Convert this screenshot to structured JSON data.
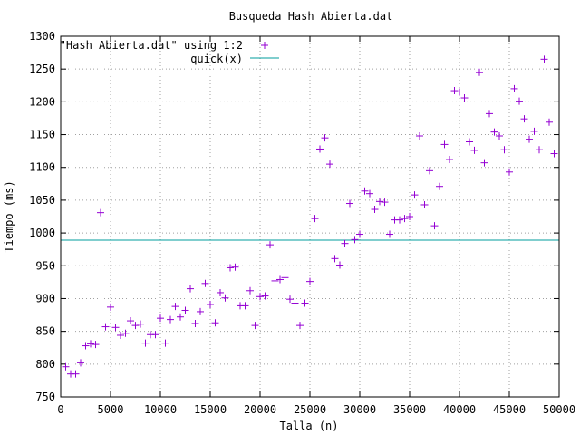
{
  "chart_data": {
    "type": "scatter",
    "title": "Busqueda Hash Abierta.dat",
    "xlabel": "Talla (n)",
    "ylabel": "Tiempo (ms)",
    "xlim": [
      0,
      50000
    ],
    "ylim": [
      750,
      1300
    ],
    "x_ticks": [
      0,
      5000,
      10000,
      15000,
      20000,
      25000,
      30000,
      35000,
      40000,
      45000,
      50000
    ],
    "y_ticks": [
      750,
      800,
      850,
      900,
      950,
      1000,
      1050,
      1100,
      1150,
      1200,
      1250,
      1300
    ],
    "grid": true,
    "legend_position": "top-left",
    "series": [
      {
        "name": "\"Hash Abierta.dat\" using 1:2",
        "type": "scatter",
        "marker": "+",
        "color": "#9400d3",
        "x": [
          500,
          1000,
          1500,
          2000,
          2500,
          3000,
          3500,
          4000,
          4500,
          5000,
          5500,
          6000,
          6500,
          7000,
          7500,
          8000,
          8500,
          9000,
          9500,
          10000,
          10500,
          11000,
          11500,
          12000,
          12500,
          13000,
          13500,
          14000,
          14500,
          15000,
          15500,
          16000,
          16500,
          17000,
          17500,
          18000,
          18500,
          19000,
          19500,
          20000,
          20500,
          21000,
          21500,
          22000,
          22500,
          23000,
          23500,
          24000,
          24500,
          25000,
          25500,
          26000,
          26500,
          27000,
          27500,
          28000,
          28500,
          29000,
          29500,
          30000,
          30500,
          31000,
          31500,
          32000,
          32500,
          33000,
          33500,
          34000,
          34500,
          35000,
          35500,
          36000,
          36500,
          37000,
          37500,
          38000,
          38500,
          39000,
          39500,
          40000,
          40500,
          41000,
          41500,
          42000,
          42500,
          43000,
          43500,
          44000,
          44500,
          45000,
          45500,
          46000,
          46500,
          47000,
          47500,
          48000,
          48500,
          49000,
          49500
        ],
        "y": [
          796,
          785,
          785,
          802,
          828,
          831,
          830,
          1031,
          857,
          887,
          856,
          844,
          847,
          866,
          859,
          861,
          832,
          845,
          845,
          870,
          832,
          868,
          888,
          872,
          882,
          915,
          862,
          880,
          923,
          891,
          863,
          909,
          901,
          947,
          948,
          889,
          889,
          912,
          859,
          903,
          904,
          982,
          927,
          929,
          932,
          899,
          893,
          859,
          893,
          926,
          1022,
          1128,
          1145,
          1105,
          961,
          951,
          984,
          1045,
          990,
          998,
          1064,
          1060,
          1036,
          1048,
          1047,
          998,
          1020,
          1020,
          1022,
          1025,
          1058,
          1148,
          1043,
          1095,
          1011,
          1071,
          1135,
          1112,
          1217,
          1215,
          1206,
          1139,
          1126,
          1245,
          1107,
          1182,
          1154,
          1148,
          1127,
          1093,
          1220,
          1201,
          1174,
          1143,
          1155,
          1127,
          1265,
          1169,
          1121
        ]
      },
      {
        "name": "quick(x)",
        "type": "line",
        "color": "#009e9e",
        "x": [
          0,
          50000
        ],
        "y": [
          989,
          989
        ]
      }
    ]
  }
}
